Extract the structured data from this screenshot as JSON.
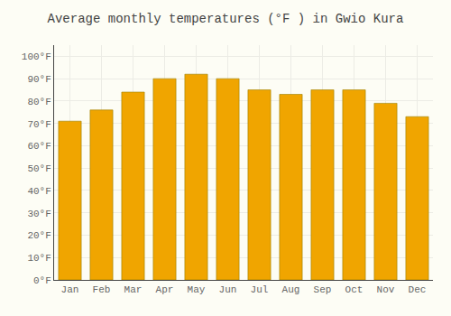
{
  "chart_data": {
    "type": "bar",
    "title": "Average monthly temperatures (°F ) in Gwio Kura",
    "categories": [
      "Jan",
      "Feb",
      "Mar",
      "Apr",
      "May",
      "Jun",
      "Jul",
      "Aug",
      "Sep",
      "Oct",
      "Nov",
      "Dec"
    ],
    "values": [
      71,
      76,
      84,
      90,
      92,
      90,
      85,
      83,
      85,
      85,
      79,
      73
    ],
    "color": "#F0A500",
    "ylim": [
      0,
      105
    ],
    "yticks": [
      {
        "value": 0,
        "label": "0°F"
      },
      {
        "value": 10,
        "label": "10°F"
      },
      {
        "value": 20,
        "label": "20°F"
      },
      {
        "value": 30,
        "label": "30°F"
      },
      {
        "value": 40,
        "label": "40°F"
      },
      {
        "value": 50,
        "label": "50°F"
      },
      {
        "value": 60,
        "label": "60°F"
      },
      {
        "value": 70,
        "label": "70°F"
      },
      {
        "value": 80,
        "label": "80°F"
      },
      {
        "value": 90,
        "label": "90°F"
      },
      {
        "value": 100,
        "label": "100°F"
      }
    ],
    "grid": true
  }
}
